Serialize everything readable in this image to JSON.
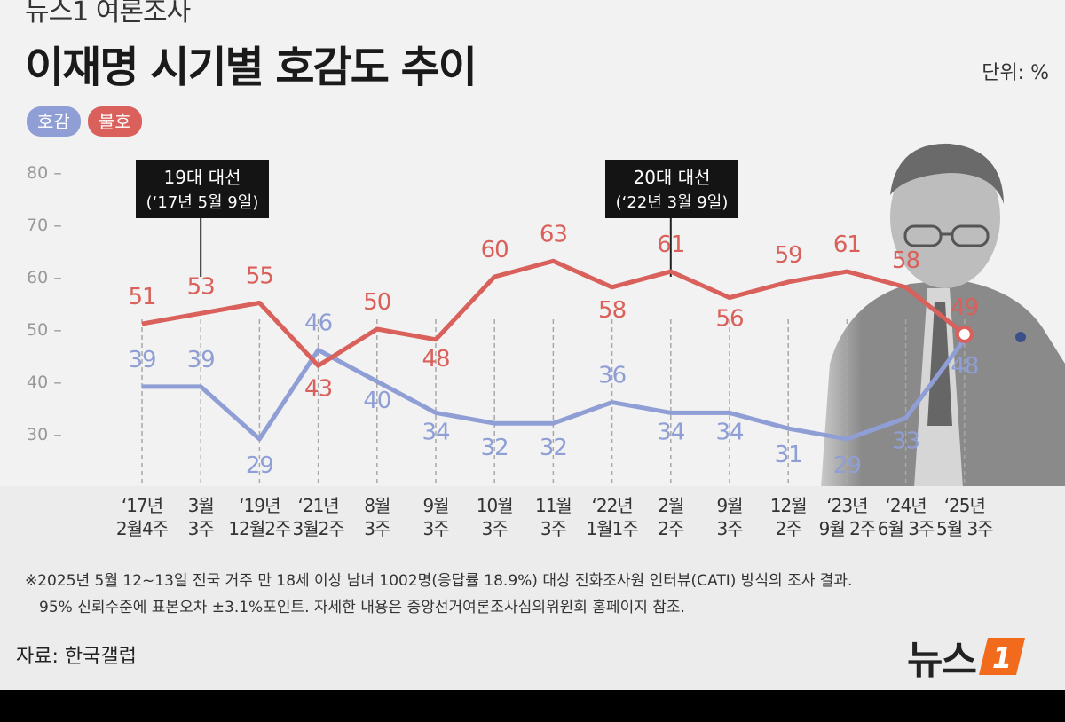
{
  "header": {
    "top_label": "뉴스1 여론조사",
    "title": "이재명 시기별 호감도 추이",
    "unit": "단위: %"
  },
  "legend": [
    {
      "label": "호감",
      "color": "#8f9fd6"
    },
    {
      "label": "불호",
      "color": "#d9605b"
    }
  ],
  "events": [
    {
      "line1": "19대 대선",
      "line2": "(‘17년 5월 9일)"
    },
    {
      "line1": "20대 대선",
      "line2": "(‘22년 3월 9일)"
    }
  ],
  "chart_data": {
    "type": "line",
    "categories": [
      [
        "‘17년",
        "2월4주"
      ],
      [
        "3월",
        "3주"
      ],
      [
        "‘19년",
        "12월2주"
      ],
      [
        "‘21년",
        "3월2주"
      ],
      [
        "8월",
        "3주"
      ],
      [
        "9월",
        "3주"
      ],
      [
        "10월",
        "3주"
      ],
      [
        "11월",
        "3주"
      ],
      [
        "‘22년",
        "1월1주"
      ],
      [
        "2월",
        "2주"
      ],
      [
        "9월",
        "3주"
      ],
      [
        "12월",
        "2주"
      ],
      [
        "‘23년",
        "9월 2주"
      ],
      [
        "‘24년",
        "6월 3주"
      ],
      [
        "‘25년",
        "5월 3주"
      ]
    ],
    "series": [
      {
        "name": "호감",
        "color": "#8f9fd6",
        "values": [
          39,
          39,
          29,
          46,
          40,
          34,
          32,
          32,
          36,
          34,
          34,
          31,
          29,
          33,
          48
        ]
      },
      {
        "name": "불호",
        "color": "#d9605b",
        "values": [
          51,
          53,
          55,
          43,
          50,
          48,
          60,
          63,
          58,
          61,
          56,
          59,
          61,
          58,
          49
        ]
      }
    ],
    "yticks": [
      30,
      40,
      50,
      60,
      70,
      80
    ],
    "ylim": [
      25,
      85
    ]
  },
  "footnote": {
    "line1": "※2025년 5월 12~13일 전국 거주 만 18세 이상 남녀 1002명(응답률 18.9%) 대상 전화조사원 인터뷰(CATI) 방식의 조사 결과.",
    "line2": "95% 신뢰수준에 표본오차 ±3.1%포인트. 자세한 내용은 중앙선거여론조사심의위원회 홈페이지 참조."
  },
  "source": "자료: 한국갤럽",
  "logo": {
    "text": "뉴스",
    "mark": "1",
    "mark_color": "#f26b1d"
  }
}
